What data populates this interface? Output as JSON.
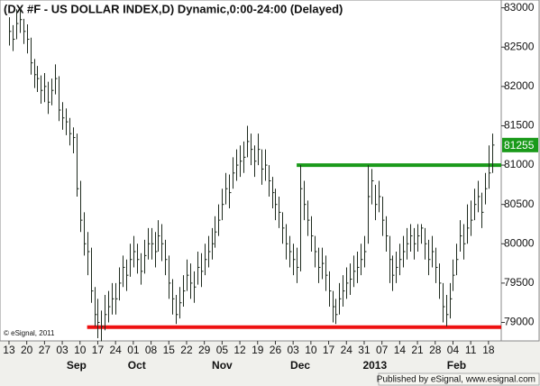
{
  "chart_data": {
    "type": "ohlc",
    "title": "(DX #F - US DOLLAR INDEX,D) Dynamic,0:00-24:00 (Delayed)",
    "copyright": "© eSignal, 2011",
    "footer": "Published by eSignal, www.esignal.com",
    "color": "#1e2a1e",
    "last_color": "#1a9a1a",
    "ylim": [
      78765,
      83099
    ],
    "yticks": [
      79000,
      79500,
      80000,
      80500,
      81000,
      81500,
      82000,
      82500,
      83000
    ],
    "categories": [
      "13",
      null,
      null,
      null,
      null,
      "20",
      null,
      null,
      null,
      null,
      "27",
      null,
      null,
      null,
      null,
      "03",
      null,
      null,
      null,
      null,
      "10",
      null,
      null,
      null,
      null,
      "17",
      null,
      null,
      null,
      null,
      "24",
      null,
      null,
      null,
      null,
      "01",
      null,
      null,
      null,
      null,
      "08",
      null,
      null,
      null,
      null,
      "15",
      null,
      null,
      null,
      null,
      "22",
      null,
      null,
      null,
      null,
      "29",
      null,
      null,
      null,
      null,
      "05",
      null,
      null,
      null,
      null,
      "12",
      null,
      null,
      null,
      null,
      "19",
      null,
      null,
      null,
      null,
      "26",
      null,
      null,
      null,
      null,
      "03",
      null,
      null,
      null,
      null,
      "10",
      null,
      null,
      null,
      null,
      "17",
      null,
      null,
      null,
      null,
      "24",
      null,
      null,
      null,
      null,
      "31",
      null,
      null,
      null,
      null,
      "07",
      null,
      null,
      null,
      null,
      "14",
      null,
      null,
      null,
      null,
      "21",
      null,
      null,
      null,
      null,
      "28",
      null,
      null,
      null,
      null,
      "04",
      null,
      null,
      null,
      null,
      "11",
      null,
      null,
      null,
      null,
      "18",
      null
    ],
    "months": [
      {
        "label": "Sep",
        "at": 19
      },
      {
        "label": "Oct",
        "at": 36
      },
      {
        "label": "Nov",
        "at": 60
      },
      {
        "label": "Dec",
        "at": 82
      },
      {
        "label": "2013",
        "at": 103
      },
      {
        "label": "Feb",
        "at": 126
      }
    ],
    "high": [
      82880,
      82780,
      82980,
      82990,
      82860,
      82790,
      82620,
      82350,
      82260,
      82140,
      82170,
      82060,
      82100,
      82280,
      82130,
      81800,
      81720,
      81600,
      81480,
      81400,
      80800,
      80400,
      80150,
      79950,
      79450,
      79300,
      79150,
      79350,
      79400,
      79500,
      79500,
      79700,
      79850,
      79800,
      80000,
      80100,
      80000,
      79880,
      80050,
      80200,
      80200,
      80150,
      80300,
      80250,
      80050,
      79850,
      79550,
      79350,
      79450,
      79600,
      79800,
      79750,
      79650,
      79900,
      79880,
      80000,
      80100,
      80200,
      80350,
      80500,
      80700,
      80900,
      80880,
      81100,
      81200,
      81250,
      81300,
      81500,
      81400,
      81250,
      81400,
      81200,
      81200,
      81000,
      80850,
      80700,
      80600,
      80400,
      80250,
      80100,
      80000,
      79950,
      81000,
      80800,
      80550,
      80350,
      80100,
      79950,
      79950,
      79850,
      79650,
      79400,
      79300,
      79500,
      79600,
      79700,
      79750,
      79850,
      79900,
      80000,
      80100,
      81000,
      80950,
      80750,
      80800,
      80600,
      80350,
      80100,
      79850,
      79900,
      80000,
      80100,
      80200,
      80250,
      80200,
      80250,
      80250,
      80200,
      80050,
      80100,
      79950,
      79750,
      79500,
      79350,
      79500,
      79800,
      80000,
      80300,
      80250,
      80500,
      80550,
      80700,
      80800,
      80650,
      80900,
      81250,
      81400
    ],
    "low": [
      82520,
      82450,
      82600,
      82680,
      82540,
      82420,
      82150,
      81980,
      81930,
      81780,
      81800,
      81650,
      81760,
      81900,
      81560,
      81450,
      81380,
      81250,
      81150,
      80600,
      80150,
      79850,
      79600,
      79250,
      78950,
      78800,
      78760,
      78900,
      79000,
      79100,
      79100,
      79280,
      79450,
      79400,
      79580,
      79700,
      79620,
      79480,
      79620,
      79800,
      79800,
      79700,
      79900,
      79780,
      79600,
      79300,
      79100,
      78980,
      79050,
      79200,
      79400,
      79300,
      79250,
      79480,
      79450,
      79600,
      79700,
      79800,
      79950,
      80100,
      80300,
      80500,
      80450,
      80700,
      80800,
      80850,
      80900,
      81100,
      81000,
      80850,
      81000,
      80750,
      80800,
      80600,
      80450,
      80300,
      80200,
      80000,
      79800,
      79700,
      79600,
      79500,
      79650,
      80300,
      80100,
      79900,
      79700,
      79500,
      79550,
      79400,
      79200,
      79000,
      78980,
      79100,
      79200,
      79300,
      79350,
      79450,
      79500,
      79600,
      79700,
      80000,
      80500,
      80300,
      80400,
      80100,
      79900,
      79500,
      79400,
      79500,
      79600,
      79700,
      79800,
      79900,
      79800,
      79900,
      80000,
      79800,
      79600,
      79700,
      79500,
      79300,
      79000,
      78950,
      79050,
      79400,
      79600,
      79900,
      79800,
      80000,
      80100,
      80300,
      80400,
      80200,
      80500,
      80700,
      80900
    ],
    "close": [
      82700,
      82600,
      82800,
      82850,
      82700,
      82600,
      82300,
      82150,
      82100,
      81950,
      82000,
      81800,
      81950,
      82100,
      81700,
      81600,
      81550,
      81400,
      81350,
      80700,
      80300,
      80000,
      79900,
      79400,
      79100,
      79000,
      78950,
      79100,
      79200,
      79300,
      79300,
      79500,
      79700,
      79600,
      79800,
      79900,
      79800,
      79650,
      79850,
      80000,
      80000,
      79900,
      80100,
      80000,
      79800,
      79500,
      79300,
      79100,
      79250,
      79400,
      79600,
      79500,
      79450,
      79700,
      79650,
      79800,
      79900,
      80000,
      80150,
      80300,
      80500,
      80700,
      80650,
      80900,
      81000,
      81050,
      81100,
      81300,
      81200,
      81050,
      81200,
      80950,
      81000,
      80800,
      80650,
      80500,
      80400,
      80200,
      80000,
      79900,
      79800,
      79700,
      80700,
      80500,
      80300,
      80100,
      79900,
      79700,
      79750,
      79600,
      79400,
      79200,
      79100,
      79300,
      79400,
      79500,
      79550,
      79650,
      79700,
      79800,
      79900,
      80600,
      80800,
      80500,
      80600,
      80300,
      80100,
      79800,
      79600,
      79700,
      79800,
      79900,
      80000,
      80100,
      80000,
      80100,
      80200,
      80000,
      79800,
      79900,
      79700,
      79500,
      79200,
      79100,
      79300,
      79600,
      79800,
      80100,
      80000,
      80200,
      80300,
      80500,
      80600,
      80400,
      80700,
      80900,
      81255
    ],
    "levels": [
      {
        "value": 81000,
        "color": "#1a9a1a",
        "from": 81
      },
      {
        "value": 78940,
        "color": "#ee1111",
        "from": 22
      }
    ]
  }
}
